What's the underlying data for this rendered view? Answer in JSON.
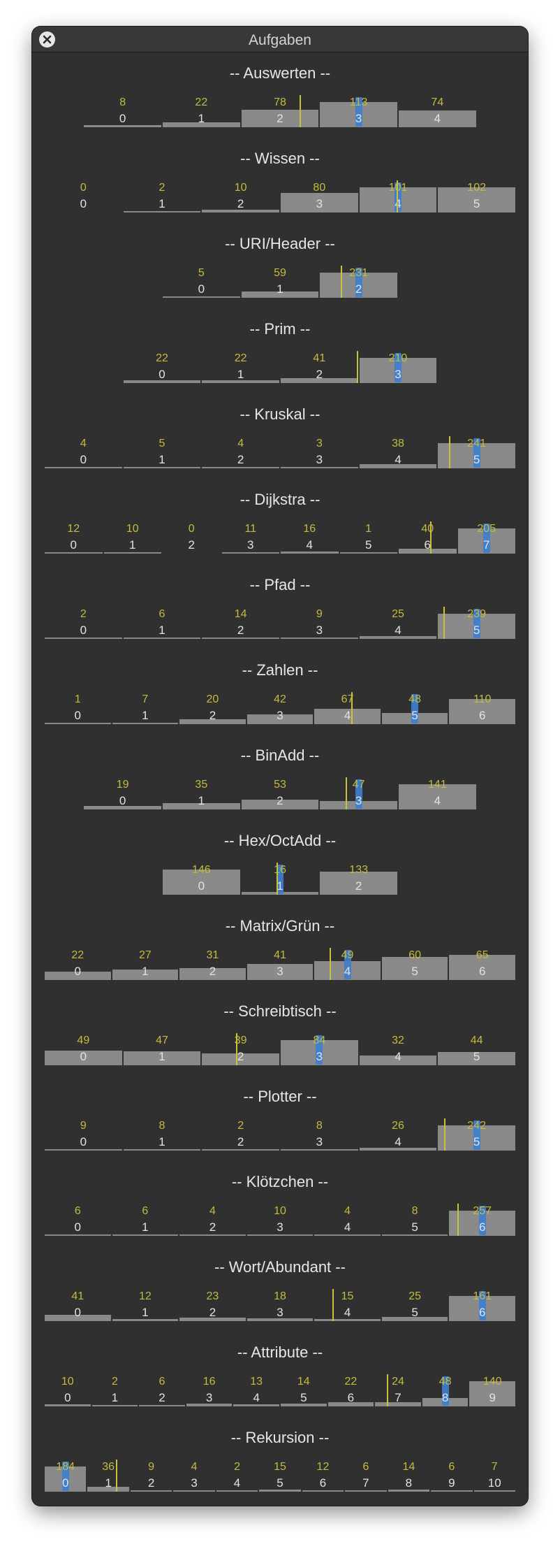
{
  "window": {
    "title": "Aufgaben",
    "close_icon": "close-icon"
  },
  "colors": {
    "bar": "#8a8a8a",
    "count": "#c5bb3c",
    "average_marker": "#c9c23a",
    "selected": "#3e7fcf",
    "background": "#303030"
  },
  "sections": [
    {
      "title": "-- Auswerten --",
      "counts": [
        8,
        22,
        78,
        113,
        74
      ],
      "selected": 3,
      "avg": 2.25
    },
    {
      "title": "-- Wissen --",
      "counts": [
        0,
        2,
        10,
        80,
        101,
        102
      ],
      "selected": 4,
      "avg": 3.98
    },
    {
      "title": "-- URI/Header --",
      "counts": [
        5,
        59,
        231
      ],
      "selected": 2,
      "avg": 1.77
    },
    {
      "title": "-- Prim --",
      "counts": [
        22,
        22,
        41,
        210
      ],
      "selected": 3,
      "avg": 2.48
    },
    {
      "title": "-- Kruskal --",
      "counts": [
        4,
        5,
        4,
        3,
        38,
        241
      ],
      "selected": 5,
      "avg": 4.65
    },
    {
      "title": "-- Dijkstra --",
      "counts": [
        12,
        10,
        0,
        11,
        16,
        1,
        40,
        205
      ],
      "selected": 7,
      "avg": 6.05
    },
    {
      "title": "-- Pfad --",
      "counts": [
        2,
        6,
        14,
        9,
        25,
        239
      ],
      "selected": 5,
      "avg": 4.58
    },
    {
      "title": "-- Zahlen --",
      "counts": [
        1,
        7,
        20,
        42,
        67,
        48,
        110
      ],
      "selected": 5,
      "avg": 4.06
    },
    {
      "title": "-- BinAdd --",
      "counts": [
        19,
        35,
        53,
        47,
        141
      ],
      "selected": 3,
      "avg": 2.83
    },
    {
      "title": "-- Hex/OctAdd --",
      "counts": [
        146,
        16,
        133
      ],
      "selected": 1,
      "avg": 0.96
    },
    {
      "title": "-- Matrix/Grün --",
      "counts": [
        22,
        27,
        31,
        41,
        49,
        60,
        65
      ],
      "selected": 4,
      "avg": 3.74
    },
    {
      "title": "-- Schreibtisch --",
      "counts": [
        49,
        47,
        39,
        84,
        32,
        44
      ],
      "selected": 3,
      "avg": 1.94
    },
    {
      "title": "-- Plotter --",
      "counts": [
        9,
        8,
        2,
        8,
        26,
        242
      ],
      "selected": 5,
      "avg": 4.59
    },
    {
      "title": "-- Klötzchen --",
      "counts": [
        6,
        6,
        4,
        10,
        4,
        8,
        257
      ],
      "selected": 6,
      "avg": 5.63
    },
    {
      "title": "-- Wort/Abundant --",
      "counts": [
        41,
        12,
        23,
        18,
        15,
        25,
        161
      ],
      "selected": 6,
      "avg": 3.78
    },
    {
      "title": "-- Attribute --",
      "counts": [
        10,
        2,
        6,
        16,
        13,
        14,
        22,
        24,
        48,
        140
      ],
      "selected": 8,
      "avg": 6.77
    },
    {
      "title": "-- Rekursion --",
      "counts": [
        184,
        36,
        9,
        4,
        2,
        15,
        12,
        6,
        14,
        6,
        7
      ],
      "selected": 0,
      "avg": 1.18
    }
  ]
}
